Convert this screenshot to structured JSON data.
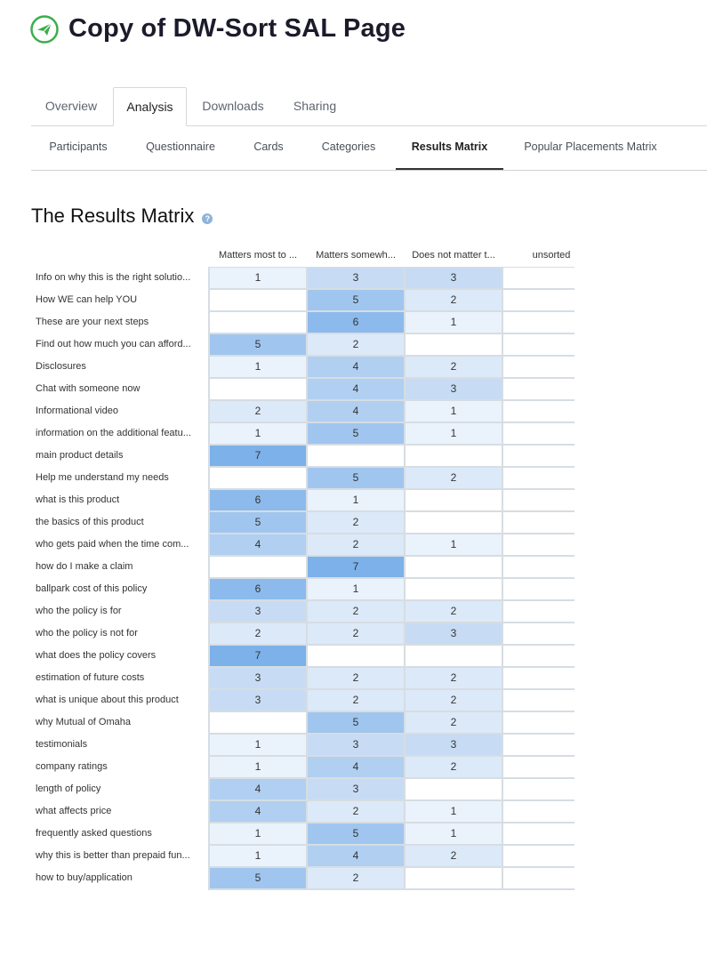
{
  "page_title": "Copy of DW-Sort SAL Page",
  "tabs": [
    "Overview",
    "Analysis",
    "Downloads",
    "Sharing"
  ],
  "active_tab": "Analysis",
  "subtabs": [
    "Participants",
    "Questionnaire",
    "Cards",
    "Categories",
    "Results Matrix",
    "Popular Placements Matrix"
  ],
  "active_subtab": "Results Matrix",
  "section_title": "The Results Matrix",
  "help_icon_glyph": "?",
  "colors": {
    "logo_green": "#3cae4a",
    "heat_1": "#eaf2fc",
    "heat_2": "#dce9f8",
    "heat_3": "#c7dcf4",
    "heat_4": "#b0cff1",
    "heat_5": "#a0c6ef",
    "heat_6": "#8cbaec",
    "heat_7": "#7cb1e9"
  },
  "columns": [
    "Matters most to ...",
    "Matters somewh...",
    "Does not matter t...",
    "unsorted"
  ],
  "rows": [
    {
      "label": "Info on why this is the right solutio...",
      "values": [
        1,
        3,
        3,
        null
      ]
    },
    {
      "label": "How WE can help YOU",
      "values": [
        null,
        5,
        2,
        null
      ]
    },
    {
      "label": "These are your next steps",
      "values": [
        null,
        6,
        1,
        null
      ]
    },
    {
      "label": "Find out how much you can afford...",
      "values": [
        5,
        2,
        null,
        null
      ]
    },
    {
      "label": "Disclosures",
      "values": [
        1,
        4,
        2,
        null
      ]
    },
    {
      "label": "Chat with someone now",
      "values": [
        null,
        4,
        3,
        null
      ]
    },
    {
      "label": "Informational video",
      "values": [
        2,
        4,
        1,
        null
      ]
    },
    {
      "label": "information on the additional featu...",
      "values": [
        1,
        5,
        1,
        null
      ]
    },
    {
      "label": "main product details",
      "values": [
        7,
        null,
        null,
        null
      ]
    },
    {
      "label": "Help me understand my needs",
      "values": [
        null,
        5,
        2,
        null
      ]
    },
    {
      "label": "what is this product",
      "values": [
        6,
        1,
        null,
        null
      ]
    },
    {
      "label": "the basics of this product",
      "values": [
        5,
        2,
        null,
        null
      ]
    },
    {
      "label": "who gets paid when the time com...",
      "values": [
        4,
        2,
        1,
        null
      ]
    },
    {
      "label": "how do I make a claim",
      "values": [
        null,
        7,
        null,
        null
      ]
    },
    {
      "label": "ballpark cost of this policy",
      "values": [
        6,
        1,
        null,
        null
      ]
    },
    {
      "label": "who the policy is for",
      "values": [
        3,
        2,
        2,
        null
      ]
    },
    {
      "label": "who the policy is not for",
      "values": [
        2,
        2,
        3,
        null
      ]
    },
    {
      "label": "what does the policy covers",
      "values": [
        7,
        null,
        null,
        null
      ]
    },
    {
      "label": "estimation of future costs",
      "values": [
        3,
        2,
        2,
        null
      ]
    },
    {
      "label": "what is unique about this product",
      "values": [
        3,
        2,
        2,
        null
      ]
    },
    {
      "label": "why Mutual of Omaha",
      "values": [
        null,
        5,
        2,
        null
      ]
    },
    {
      "label": "testimonials",
      "values": [
        1,
        3,
        3,
        null
      ]
    },
    {
      "label": "company ratings",
      "values": [
        1,
        4,
        2,
        null
      ]
    },
    {
      "label": "length of policy",
      "values": [
        4,
        3,
        null,
        null
      ]
    },
    {
      "label": "what affects price",
      "values": [
        4,
        2,
        1,
        null
      ]
    },
    {
      "label": "frequently asked questions",
      "values": [
        1,
        5,
        1,
        null
      ]
    },
    {
      "label": "why this is better than prepaid fun...",
      "values": [
        1,
        4,
        2,
        null
      ]
    },
    {
      "label": "how to buy/application",
      "values": [
        5,
        2,
        null,
        null
      ]
    }
  ]
}
